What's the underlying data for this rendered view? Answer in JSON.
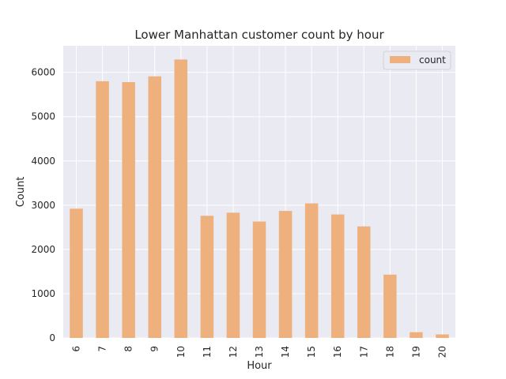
{
  "chart_data": {
    "type": "bar",
    "title": "Lower Manhattan customer count by hour",
    "xlabel": "Hour",
    "ylabel": "Count",
    "categories": [
      "6",
      "7",
      "8",
      "9",
      "10",
      "11",
      "12",
      "13",
      "14",
      "15",
      "16",
      "17",
      "18",
      "19",
      "20"
    ],
    "series": [
      {
        "name": "count",
        "color": "#EEB17E",
        "values": [
          2920,
          5800,
          5780,
          5910,
          6290,
          2760,
          2830,
          2630,
          2870,
          3040,
          2790,
          2520,
          1430,
          130,
          80
        ]
      }
    ],
    "ylim": [
      0,
      6600
    ],
    "yticks": [
      0,
      1000,
      2000,
      3000,
      4000,
      5000,
      6000
    ],
    "grid": true,
    "legend_position": "top-right",
    "background_color": "#EAEAF2",
    "grid_color": "#FFFFFF"
  }
}
